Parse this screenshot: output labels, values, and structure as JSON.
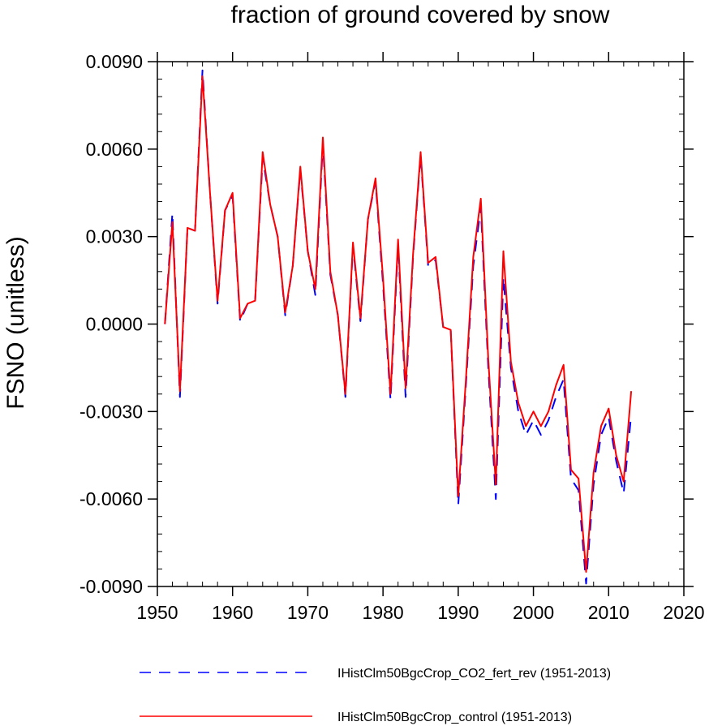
{
  "chart_data": {
    "type": "line",
    "title": "fraction of ground covered by snow",
    "xlabel": "",
    "ylabel": "FSNO  (unitless)",
    "xlim": [
      1950,
      2020
    ],
    "ylim": [
      -0.009,
      0.009
    ],
    "x_ticks": [
      1950,
      1960,
      1970,
      1980,
      1990,
      2000,
      2010,
      2020
    ],
    "x_tick_labels": [
      "1950",
      "1960",
      "1970",
      "1980",
      "1990",
      "2000",
      "2010",
      "2020"
    ],
    "y_ticks": [
      -0.009,
      -0.006,
      -0.003,
      0.0,
      0.003,
      0.006,
      0.009
    ],
    "y_tick_labels": [
      "-0.0090",
      "-0.0060",
      "-0.0030",
      "0.0000",
      "0.0030",
      "0.0060",
      "0.0090"
    ],
    "grid": false,
    "legend_position": "bottom",
    "x": [
      1951,
      1952,
      1953,
      1954,
      1955,
      1956,
      1957,
      1958,
      1959,
      1960,
      1961,
      1962,
      1963,
      1964,
      1965,
      1966,
      1967,
      1968,
      1969,
      1970,
      1971,
      1972,
      1973,
      1974,
      1975,
      1976,
      1977,
      1978,
      1979,
      1980,
      1981,
      1982,
      1983,
      1984,
      1985,
      1986,
      1987,
      1988,
      1989,
      1990,
      1991,
      1992,
      1993,
      1994,
      1995,
      1996,
      1997,
      1998,
      1999,
      2000,
      2001,
      2002,
      2003,
      2004,
      2005,
      2006,
      2007,
      2008,
      2009,
      2010,
      2011,
      2012,
      2013
    ],
    "series": [
      {
        "name": "IHistClm50BgcCrop_CO2_fert_rev (1951-2013)",
        "color": "#0000ff",
        "style": "dashed",
        "values": [
          0.0,
          0.0038,
          -0.0025,
          0.0033,
          0.0032,
          0.0087,
          0.0045,
          0.0007,
          0.0039,
          0.0044,
          0.0001,
          0.0007,
          0.0008,
          0.0057,
          0.0041,
          0.003,
          0.0003,
          0.002,
          0.0053,
          0.0025,
          0.001,
          0.0062,
          0.0017,
          0.0003,
          -0.0025,
          0.0027,
          0.0001,
          0.0036,
          0.0049,
          0.0014,
          -0.0026,
          0.0027,
          -0.0025,
          0.0023,
          0.0058,
          0.002,
          0.0022,
          -0.0001,
          -0.0002,
          -0.0062,
          -0.0022,
          0.002,
          0.004,
          -0.0015,
          -0.006,
          0.0016,
          -0.0015,
          -0.003,
          -0.0038,
          -0.0033,
          -0.0038,
          -0.0033,
          -0.0025,
          -0.0019,
          -0.0053,
          -0.0057,
          -0.0089,
          -0.0055,
          -0.0038,
          -0.0032,
          -0.0047,
          -0.0058,
          -0.0031
        ]
      },
      {
        "name": "IHistClm50BgcCrop_control (1951-2013)",
        "color": "#ff0000",
        "style": "solid",
        "values": [
          0.0,
          0.0035,
          -0.0023,
          0.0033,
          0.0032,
          0.0085,
          0.0045,
          0.0008,
          0.0039,
          0.0045,
          0.0002,
          0.0007,
          0.0008,
          0.0059,
          0.0041,
          0.003,
          0.0004,
          0.002,
          0.0054,
          0.0025,
          0.0012,
          0.0064,
          0.0018,
          0.0003,
          -0.0024,
          0.0028,
          0.0002,
          0.0036,
          0.005,
          0.0016,
          -0.0024,
          0.0029,
          -0.0022,
          0.0024,
          0.0059,
          0.0021,
          0.0023,
          -0.0001,
          -0.0002,
          -0.0059,
          -0.002,
          0.0023,
          0.0043,
          -0.0012,
          -0.0055,
          0.0025,
          -0.0013,
          -0.0027,
          -0.0035,
          -0.003,
          -0.0035,
          -0.003,
          -0.0021,
          -0.0014,
          -0.005,
          -0.0053,
          -0.0085,
          -0.0051,
          -0.0035,
          -0.0029,
          -0.0045,
          -0.0054,
          -0.0023
        ]
      }
    ]
  }
}
